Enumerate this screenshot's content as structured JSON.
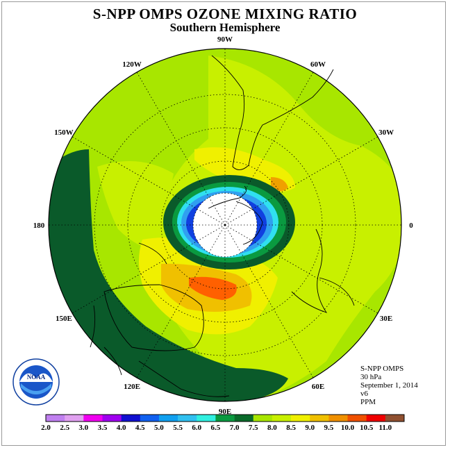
{
  "header": {
    "title": "S-NPP OMPS OZONE MIXING RATIO",
    "subtitle": "Southern Hemisphere"
  },
  "map": {
    "longitude_labels": [
      "90W",
      "60W",
      "30W",
      "0",
      "30E",
      "60E",
      "90E",
      "120E",
      "150E",
      "180",
      "150W",
      "120W"
    ],
    "colors": {
      "background": "#a8e600",
      "ocean_field": "#c8f000",
      "outer_band": "#0a5a2a",
      "yellow": "#f0f000",
      "orange": "#f0a000",
      "hotspot": "#ff6000",
      "blue_core": "#1040e0",
      "light_blue": "#30a0f0",
      "cyan": "#30e0f0"
    }
  },
  "info_block": {
    "instrument": "S-NPP OMPS",
    "pressure_level": "30 hPa",
    "date": "September 1, 2014",
    "version": "v6",
    "unit": "PPM"
  },
  "colorbar": {
    "ticks": [
      "2.0",
      "2.5",
      "3.0",
      "3.5",
      "4.0",
      "4.5",
      "5.0",
      "5.5",
      "6.0",
      "6.5",
      "7.0",
      "7.5",
      "8.0",
      "8.5",
      "9.0",
      "9.5",
      "10.0",
      "10.5",
      "11.0"
    ],
    "colors": [
      "#c080f0",
      "#e0a0f0",
      "#f000f0",
      "#a000f0",
      "#1010d0",
      "#1060f0",
      "#10a0f0",
      "#30c0f0",
      "#30f0e0",
      "#0a9a40",
      "#0a6a2a",
      "#a8e600",
      "#c8f000",
      "#f0f000",
      "#f0c000",
      "#f09000",
      "#f05000",
      "#f00000",
      "#905030"
    ]
  },
  "logo": {
    "text": "NOAA",
    "ring_text": "NATIONAL OCEANIC AND ATMOSPHERIC ADMINISTRATION · U.S. DEPARTMENT OF COMMERCE"
  }
}
